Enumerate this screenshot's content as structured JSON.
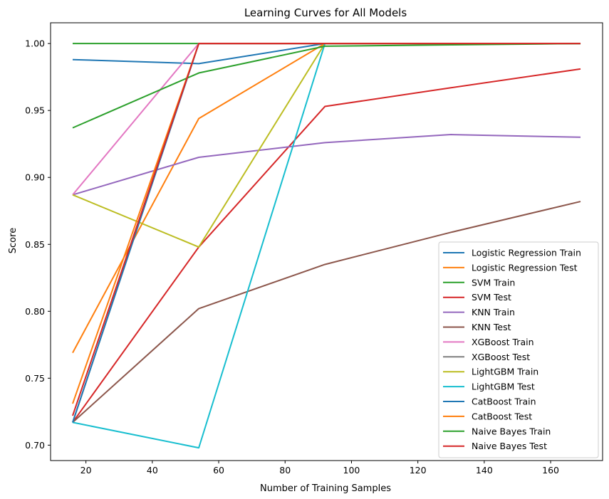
{
  "chart_data": {
    "type": "line",
    "title": "Learning Curves for All Models",
    "xlabel": "Number of Training Samples",
    "ylabel": "Score",
    "xlim": [
      9.35,
      175.65
    ],
    "ylim": [
      0.6885,
      1.0155
    ],
    "xticks": [
      20,
      40,
      60,
      80,
      100,
      120,
      140,
      160
    ],
    "yticks": [
      0.7,
      0.75,
      0.8,
      0.85,
      0.9,
      0.95,
      1.0
    ],
    "xtick_labels": [
      "20",
      "40",
      "60",
      "80",
      "100",
      "120",
      "140",
      "160"
    ],
    "ytick_labels": [
      "0.70",
      "0.75",
      "0.80",
      "0.85",
      "0.90",
      "0.95",
      "1.00"
    ],
    "grid": false,
    "legend_position": "lower-right",
    "x": [
      16,
      54,
      92,
      130,
      169
    ],
    "series": [
      {
        "name": "Logistic Regression Train",
        "color": "#1f77b4",
        "values": [
          0.988,
          0.985,
          1.0,
          1.0,
          1.0
        ]
      },
      {
        "name": "Logistic Regression Test",
        "color": "#ff7f0e",
        "values": [
          0.769,
          0.944,
          1.0,
          1.0,
          1.0
        ]
      },
      {
        "name": "SVM Train",
        "color": "#2ca02c",
        "values": [
          1.0,
          1.0,
          1.0,
          1.0,
          1.0
        ]
      },
      {
        "name": "SVM Test",
        "color": "#d62728",
        "values": [
          0.717,
          0.848,
          0.953,
          0.967,
          0.981
        ]
      },
      {
        "name": "KNN Train",
        "color": "#9467bd",
        "values": [
          0.887,
          0.915,
          0.926,
          0.932,
          0.93
        ]
      },
      {
        "name": "KNN Test",
        "color": "#8c564b",
        "values": [
          0.717,
          0.802,
          0.835,
          0.859,
          0.882
        ]
      },
      {
        "name": "XGBoost Train",
        "color": "#e377c2",
        "values": [
          0.887,
          1.0,
          1.0,
          1.0,
          1.0
        ]
      },
      {
        "name": "XGBoost Test",
        "color": "#7f7f7f",
        "values": [
          0.717,
          1.0,
          1.0,
          1.0,
          1.0
        ]
      },
      {
        "name": "LightGBM Train",
        "color": "#bcbd22",
        "values": [
          0.887,
          0.848,
          1.0,
          1.0,
          1.0
        ]
      },
      {
        "name": "LightGBM Test",
        "color": "#17becf",
        "values": [
          0.717,
          0.698,
          1.0,
          1.0,
          1.0
        ]
      },
      {
        "name": "CatBoost Train",
        "color": "#1f77b4",
        "values": [
          0.717,
          1.0,
          1.0,
          1.0,
          1.0
        ]
      },
      {
        "name": "CatBoost Test",
        "color": "#ff7f0e",
        "values": [
          0.731,
          1.0,
          1.0,
          1.0,
          1.0
        ]
      },
      {
        "name": "Naive Bayes Train",
        "color": "#2ca02c",
        "values": [
          0.937,
          0.978,
          0.998,
          0.999,
          1.0
        ]
      },
      {
        "name": "Naive Bayes Test",
        "color": "#d62728",
        "values": [
          0.722,
          1.0,
          1.0,
          1.0,
          1.0
        ]
      }
    ]
  }
}
